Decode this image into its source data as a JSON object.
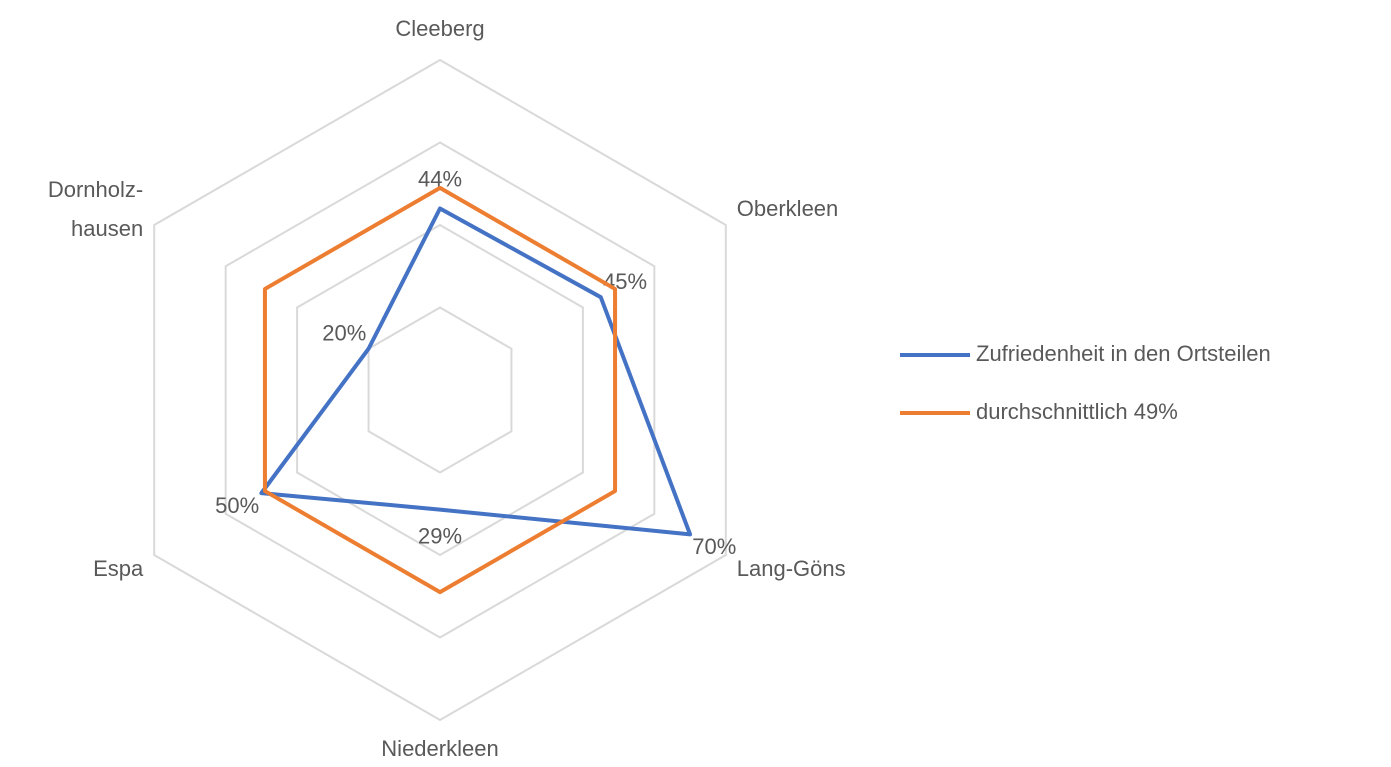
{
  "chart_data": {
    "type": "radar",
    "categories": [
      "Cleeberg",
      "Oberkleen",
      "Lang-Göns",
      "Niederkleen",
      "Espa",
      "Dornholz-\nhausen"
    ],
    "series": [
      {
        "name": "Zufriedenheit in den Ortsteilen",
        "color": "#4472c4",
        "values": [
          44,
          45,
          70,
          29,
          50,
          20
        ],
        "value_labels": [
          "44%",
          "45%",
          "70%",
          "29%",
          "50%",
          "20%"
        ]
      },
      {
        "name": "durchschnittlich 49%",
        "color": "#ed7d31",
        "values": [
          49,
          49,
          49,
          49,
          49,
          49
        ]
      }
    ],
    "ylim": [
      0,
      80
    ],
    "yticks": [
      0,
      20,
      40,
      60,
      80
    ],
    "grid": true,
    "legend": "right"
  }
}
